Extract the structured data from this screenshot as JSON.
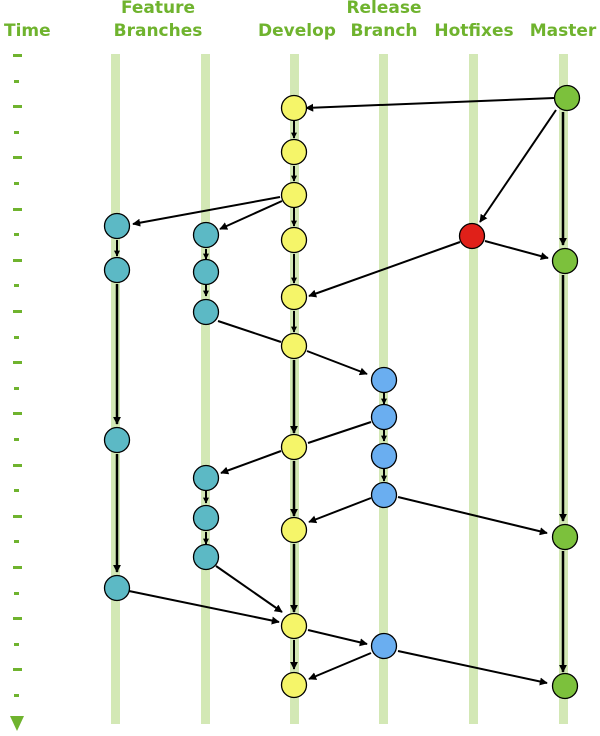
{
  "labels": {
    "time": "Time",
    "feature_line1": "Feature",
    "feature_line2": "Branches",
    "develop": "Develop",
    "release_line1": "Release",
    "release_line2": "Branch",
    "hotfixes": "Hotfixes",
    "master": "Master"
  },
  "colors": {
    "lane": "#d3e8b5",
    "time_tick": "#6fb32e",
    "header": "#6fb32e",
    "develop_node": "#f5f569",
    "feature_node": "#5cb9c5",
    "release_node": "#6aaef0",
    "hotfix_node": "#e02019",
    "master_node": "#7cc13c",
    "arrow": "#000000"
  },
  "icons": {
    "time_arrow": "arrow-down-icon"
  }
}
